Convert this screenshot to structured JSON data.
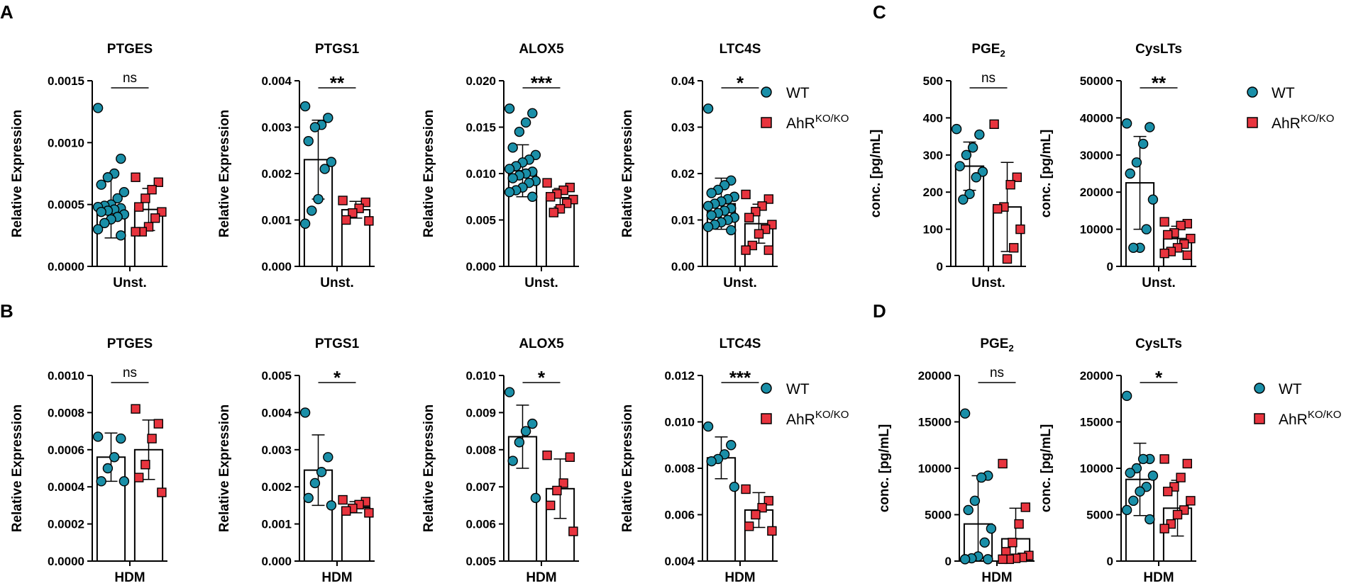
{
  "legend": {
    "wt_label": "WT",
    "ko_label_base": "AhR",
    "ko_label_sup": "KO/KO",
    "wt_color": "#1a8fa8",
    "ko_color": "#e8343e"
  },
  "panel_letters": [
    "A",
    "B",
    "C",
    "D"
  ],
  "chart_data": [
    {
      "panel": "A",
      "type": "bar",
      "title": "PTGES",
      "ylabel": "Relative Expression",
      "xlabel": "Unst.",
      "ylim": [
        0,
        0.0015
      ],
      "yticks": [
        "0.0000",
        "0.0005",
        "0.0010",
        "0.0015"
      ],
      "sig": "ns",
      "series": [
        {
          "name": "WT",
          "mean": 0.00048,
          "sd": 0.00025,
          "points": [
            0.00128,
            0.00087,
            0.00075,
            0.00072,
            0.00066,
            0.0006,
            0.00055,
            0.0005,
            0.00049,
            0.00048,
            0.00047,
            0.00046,
            0.00045,
            0.00044,
            0.00042,
            0.0004,
            0.00038,
            0.00035,
            0.0003,
            0.00025
          ]
        },
        {
          "name": "AhR KO/KO",
          "mean": 0.00046,
          "sd": 0.00017,
          "points": [
            0.00072,
            0.00068,
            0.00062,
            0.00055,
            0.00048,
            0.00044,
            0.00039,
            0.00032,
            0.00028,
            0.00028
          ]
        }
      ]
    },
    {
      "panel": "A",
      "type": "bar",
      "title": "PTGS1",
      "ylabel": "Relative Expression",
      "xlabel": "Unst.",
      "ylim": [
        0,
        0.004
      ],
      "yticks": [
        "0.000",
        "0.001",
        "0.002",
        "0.003",
        "0.004"
      ],
      "sig": "**",
      "series": [
        {
          "name": "WT",
          "mean": 0.0023,
          "sd": 0.00085,
          "points": [
            0.00345,
            0.0032,
            0.00305,
            0.003,
            0.0027,
            0.00225,
            0.0021,
            0.00145,
            0.0012,
            0.00092
          ]
        },
        {
          "name": "AhR KO/KO",
          "mean": 0.00122,
          "sd": 0.00018,
          "points": [
            0.00142,
            0.00138,
            0.00125,
            0.00115,
            0.001,
            0.00098
          ]
        }
      ]
    },
    {
      "panel": "A",
      "type": "bar",
      "title": "ALOX5",
      "ylabel": "Relative Expression",
      "xlabel": "Unst.",
      "ylim": [
        0,
        0.02
      ],
      "yticks": [
        "0.000",
        "0.005",
        "0.010",
        "0.015",
        "0.020"
      ],
      "sig": "***",
      "series": [
        {
          "name": "WT",
          "mean": 0.0103,
          "sd": 0.0028,
          "points": [
            0.017,
            0.0165,
            0.0155,
            0.0145,
            0.0128,
            0.012,
            0.0115,
            0.0112,
            0.0108,
            0.0105,
            0.0102,
            0.01,
            0.0098,
            0.0095,
            0.0092,
            0.009,
            0.0085,
            0.0082,
            0.008,
            0.0075
          ]
        },
        {
          "name": "AhR KO/KO",
          "mean": 0.0074,
          "sd": 0.001,
          "points": [
            0.009,
            0.0085,
            0.0082,
            0.0078,
            0.0075,
            0.0072,
            0.0068,
            0.0062,
            0.0058
          ]
        }
      ]
    },
    {
      "panel": "A",
      "type": "bar",
      "title": "LTC4S",
      "ylabel": "Relative Expression",
      "xlabel": "Unst.",
      "ylim": [
        0,
        0.04
      ],
      "yticks": [
        "0.00",
        "0.01",
        "0.02",
        "0.03",
        "0.04"
      ],
      "sig": "*",
      "series": [
        {
          "name": "WT",
          "mean": 0.0135,
          "sd": 0.0055,
          "points": [
            0.034,
            0.0185,
            0.0175,
            0.0165,
            0.0158,
            0.015,
            0.0145,
            0.014,
            0.0135,
            0.013,
            0.0125,
            0.012,
            0.0115,
            0.011,
            0.0105,
            0.01,
            0.0095,
            0.009,
            0.0085,
            0.0078
          ]
        },
        {
          "name": "AhR KO/KO",
          "mean": 0.0092,
          "sd": 0.0042,
          "points": [
            0.0155,
            0.0145,
            0.013,
            0.0118,
            0.0105,
            0.009,
            0.008,
            0.007,
            0.0045,
            0.0035,
            0.0035
          ]
        }
      ]
    },
    {
      "panel": "B",
      "type": "bar",
      "title": "PTGES",
      "ylabel": "Relative Expression",
      "xlabel": "HDM",
      "ylim": [
        0,
        0.001
      ],
      "yticks": [
        "0.0000",
        "0.0002",
        "0.0004",
        "0.0006",
        "0.0008",
        "0.0010"
      ],
      "sig": "ns",
      "series": [
        {
          "name": "WT",
          "mean": 0.00056,
          "sd": 0.00013,
          "points": [
            0.00067,
            0.00066,
            0.00056,
            0.0005,
            0.00043,
            0.00043
          ]
        },
        {
          "name": "AhR KO/KO",
          "mean": 0.0006,
          "sd": 0.00016,
          "points": [
            0.00082,
            0.00074,
            0.00066,
            0.00052,
            0.00045,
            0.00037
          ]
        }
      ]
    },
    {
      "panel": "B",
      "type": "bar",
      "title": "PTGS1",
      "ylabel": "Relative Expression",
      "xlabel": "HDM",
      "ylim": [
        0,
        0.005
      ],
      "yticks": [
        "0.000",
        "0.001",
        "0.002",
        "0.003",
        "0.004",
        "0.005"
      ],
      "sig": "*",
      "series": [
        {
          "name": "WT",
          "mean": 0.00245,
          "sd": 0.00095,
          "points": [
            0.004,
            0.0028,
            0.0024,
            0.0021,
            0.0017,
            0.0015
          ]
        },
        {
          "name": "AhR KO/KO",
          "mean": 0.00145,
          "sd": 0.00015,
          "points": [
            0.00165,
            0.0016,
            0.00152,
            0.00142,
            0.00135,
            0.0013
          ]
        }
      ]
    },
    {
      "panel": "B",
      "type": "bar",
      "title": "ALOX5",
      "ylabel": "Relative Expression",
      "xlabel": "HDM",
      "ylim": [
        0.005,
        0.01
      ],
      "yticks": [
        "0.005",
        "0.006",
        "0.007",
        "0.008",
        "0.009",
        "0.010"
      ],
      "sig": "*",
      "series": [
        {
          "name": "WT",
          "mean": 0.00835,
          "sd": 0.00085,
          "points": [
            0.00955,
            0.0087,
            0.0085,
            0.0082,
            0.0077,
            0.0067
          ]
        },
        {
          "name": "AhR KO/KO",
          "mean": 0.00695,
          "sd": 0.0008,
          "points": [
            0.00785,
            0.0078,
            0.0071,
            0.0069,
            0.0065,
            0.0058
          ]
        }
      ]
    },
    {
      "panel": "B",
      "type": "bar",
      "title": "LTC4S",
      "ylabel": "Relative Expression",
      "xlabel": "HDM",
      "ylim": [
        0.004,
        0.012
      ],
      "yticks": [
        "0.004",
        "0.006",
        "0.008",
        "0.010",
        "0.012"
      ],
      "sig": "***",
      "series": [
        {
          "name": "WT",
          "mean": 0.00845,
          "sd": 0.0009,
          "points": [
            0.0098,
            0.009,
            0.0086,
            0.0084,
            0.0083,
            0.0072
          ]
        },
        {
          "name": "AhR KO/KO",
          "mean": 0.0062,
          "sd": 0.00075,
          "points": [
            0.0071,
            0.0066,
            0.0063,
            0.006,
            0.0055,
            0.0053
          ]
        }
      ]
    },
    {
      "panel": "C",
      "type": "bar",
      "title": "PGE",
      "title_sub": "2",
      "ylabel": "conc. [pg/mL]",
      "xlabel": "Unst.",
      "ylim": [
        0,
        500
      ],
      "yticks": [
        "0",
        "100",
        "200",
        "300",
        "400",
        "500"
      ],
      "sig": "ns",
      "series": [
        {
          "name": "WT",
          "mean": 270,
          "sd": 65,
          "points": [
            370,
            355,
            320,
            300,
            270,
            255,
            240,
            195,
            180
          ]
        },
        {
          "name": "AhR KO/KO",
          "mean": 160,
          "sd": 120,
          "points": [
            383,
            240,
            220,
            160,
            155,
            100,
            50,
            20
          ]
        }
      ]
    },
    {
      "panel": "C",
      "type": "bar",
      "title": "CysLTs",
      "ylabel": "conc. [pg/mL]",
      "xlabel": "Unst.",
      "ylim": [
        0,
        50000
      ],
      "yticks": [
        "0",
        "10000",
        "20000",
        "30000",
        "40000",
        "50000"
      ],
      "sig": "**",
      "series": [
        {
          "name": "WT",
          "mean": 22500,
          "sd": 12500,
          "points": [
            38500,
            37500,
            33000,
            28000,
            25000,
            18000,
            10000,
            5000,
            5000
          ]
        },
        {
          "name": "AhR KO/KO",
          "mean": 7500,
          "sd": 3300,
          "points": [
            12000,
            11500,
            11000,
            9000,
            8500,
            7500,
            6000,
            5000,
            4000,
            3500,
            3000
          ]
        }
      ]
    },
    {
      "panel": "D",
      "type": "bar",
      "title": "PGE",
      "title_sub": "2",
      "ylabel": "conc. [pg/mL]",
      "xlabel": "HDM",
      "ylim": [
        0,
        20000
      ],
      "yticks": [
        "0",
        "5000",
        "10000",
        "15000",
        "20000"
      ],
      "sig": "ns",
      "series": [
        {
          "name": "WT",
          "mean": 4000,
          "sd": 5200,
          "points": [
            15900,
            9200,
            9000,
            6500,
            5500,
            3500,
            2000,
            500,
            300,
            200,
            200
          ]
        },
        {
          "name": "AhR KO/KO",
          "mean": 2400,
          "sd": 3300,
          "points": [
            10500,
            5800,
            4000,
            2000,
            1000,
            600,
            400,
            300,
            200,
            200
          ]
        }
      ]
    },
    {
      "panel": "D",
      "type": "bar",
      "title": "CysLTs",
      "ylabel": "conc. [pg/mL]",
      "xlabel": "HDM",
      "ylim": [
        0,
        20000
      ],
      "yticks": [
        "0",
        "5000",
        "10000",
        "15000",
        "20000"
      ],
      "sig": "*",
      "series": [
        {
          "name": "WT",
          "mean": 8800,
          "sd": 3900,
          "points": [
            17800,
            11000,
            11000,
            10000,
            9500,
            9200,
            8000,
            7500,
            6500,
            5500,
            4500
          ]
        },
        {
          "name": "AhR KO/KO",
          "mean": 5700,
          "sd": 3000,
          "points": [
            11000,
            10500,
            9000,
            8000,
            7500,
            6500,
            5500,
            5000,
            4000,
            3500
          ]
        }
      ]
    }
  ]
}
